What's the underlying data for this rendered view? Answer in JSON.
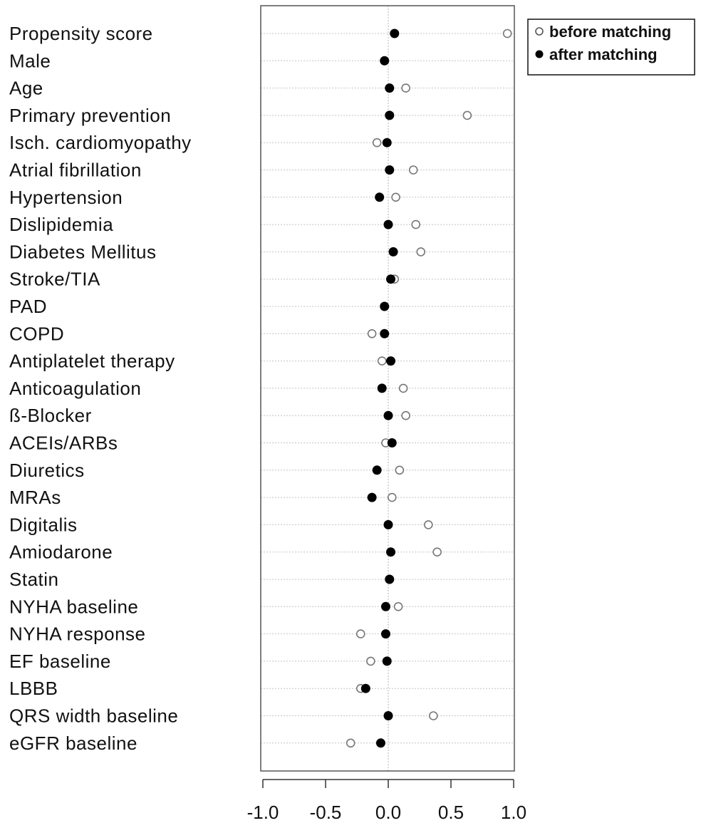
{
  "chart_data": {
    "type": "scatter",
    "title": "",
    "xlabel": "",
    "ylabel": "",
    "xlim": [
      -1.1,
      1.1
    ],
    "xticks": [
      -1.0,
      -0.5,
      0.0,
      0.5,
      1.0
    ],
    "xtick_labels": [
      "-1.0",
      "-0.5",
      "0.0",
      "0.5",
      "1.0"
    ],
    "grid": "horizontal dotted lines at each category, vertical dotted line at 0",
    "legend": {
      "position": "top-right, outside plot"
    },
    "categories": [
      "Propensity score",
      "Male",
      "Age",
      "Primary prevention",
      "Isch. cardiomyopathy",
      "Atrial fibrillation",
      "Hypertension",
      "Dislipidemia",
      "Diabetes Mellitus",
      "Stroke/TIA",
      "PAD",
      "COPD",
      "Antiplatelet therapy",
      "Anticoagulation",
      "ß-Blocker",
      "ACEIs/ARBs",
      "Diuretics",
      "MRAs",
      "Digitalis",
      "Amiodarone",
      "Statin",
      "NYHA baseline",
      "NYHA response",
      "EF baseline",
      "LBBB",
      "QRS width baseline",
      "eGFR baseline"
    ],
    "series": [
      {
        "name": "before matching",
        "marker": "open-circle",
        "color": "#777777",
        "values": [
          0.95,
          -0.03,
          0.14,
          0.63,
          -0.09,
          0.2,
          0.06,
          0.22,
          0.26,
          0.05,
          -0.03,
          -0.13,
          -0.05,
          0.12,
          0.14,
          -0.02,
          0.09,
          0.03,
          0.32,
          0.39,
          0.01,
          0.08,
          -0.22,
          -0.14,
          -0.22,
          0.36,
          -0.3
        ]
      },
      {
        "name": "after matching",
        "marker": "filled-circle",
        "color": "#000000",
        "values": [
          0.05,
          -0.03,
          0.01,
          0.01,
          -0.01,
          0.01,
          -0.07,
          0.0,
          0.04,
          0.02,
          -0.03,
          -0.03,
          0.02,
          -0.05,
          0.0,
          0.03,
          -0.09,
          -0.13,
          0.0,
          0.02,
          0.01,
          -0.02,
          -0.02,
          -0.01,
          -0.18,
          0.0,
          -0.06
        ]
      }
    ]
  },
  "legend": {
    "items": [
      {
        "label": "before matching"
      },
      {
        "label": "after matching"
      }
    ]
  }
}
